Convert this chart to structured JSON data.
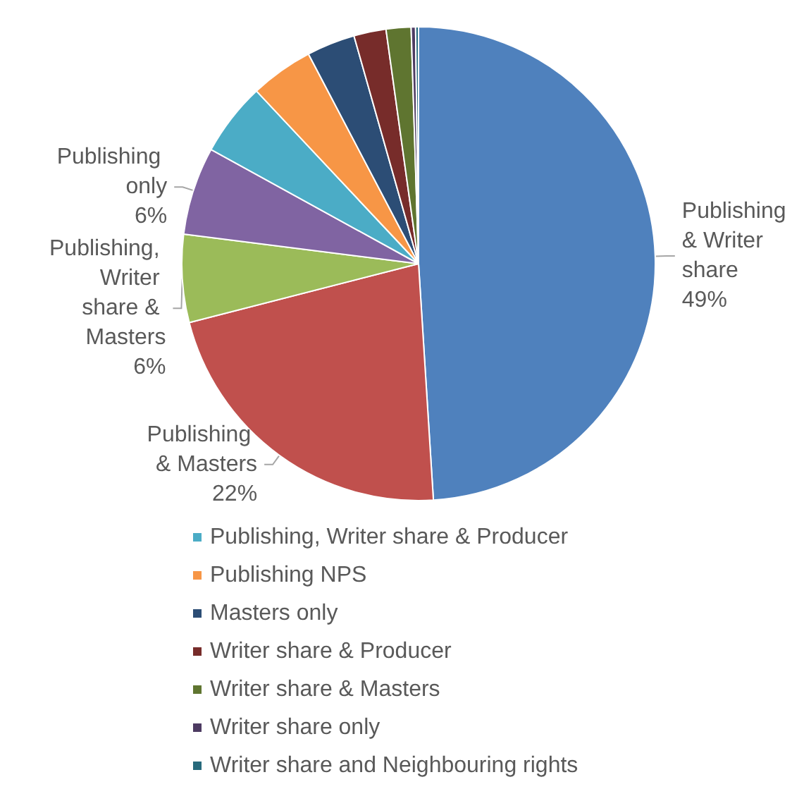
{
  "chart_data": {
    "type": "pie",
    "categories": [
      "Publishing & Writer share",
      "Publishing & Masters",
      "Publishing, Writer share & Masters",
      "Publishing only",
      "Publishing, Writer share & Producer",
      "Publishing NPS",
      "Masters only",
      "Writer share & Producer",
      "Writer share & Masters",
      "Writer share only",
      "Writer share and Neighbouring rights"
    ],
    "values": [
      49,
      22,
      6,
      6,
      5,
      4.3,
      3.3,
      2.2,
      1.7,
      0.3,
      0.2
    ],
    "colors": [
      "#4f81bd",
      "#c0504d",
      "#9bbb59",
      "#8064a2",
      "#4bacc6",
      "#f79646",
      "#2c4d75",
      "#772c2a",
      "#5f7530",
      "#4d3b62",
      "#276a7c"
    ],
    "value_labels": [
      "49%",
      "22%",
      "6%",
      "6%",
      null,
      null,
      null,
      null,
      null,
      null,
      null
    ],
    "legend": "bottom"
  }
}
